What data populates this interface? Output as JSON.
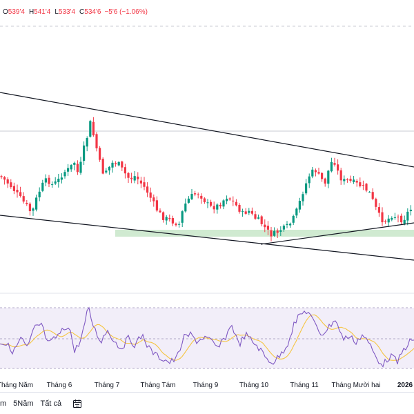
{
  "ohlc": {
    "open_label": "O",
    "open": "539'4",
    "high_label": "H",
    "high": "541'4",
    "low_label": "L",
    "low": "533'4",
    "close_label": "C",
    "close": "534'6",
    "change": "−5'6 (−1.06%)"
  },
  "x_axis": {
    "labels": [
      "Tháng Năm",
      "Tháng 6",
      "Tháng 7",
      "Tháng Tám",
      "Tháng 9",
      "Tháng 10",
      "Tháng 11",
      "Tháng Mười hai",
      "2026"
    ]
  },
  "toolbar": {
    "range_1y": "m",
    "range_5y": "5Năm",
    "range_all": "Tất cả",
    "calendar_icon": "calendar-icon"
  },
  "colors": {
    "up": "#089981",
    "down": "#f23645",
    "rsi_line": "#7e57c2",
    "rsi_ma": "#f5c542",
    "rsi_band": "#ede7f6",
    "support_zone": "#c8e6c9",
    "trendline": "#131722"
  }
}
